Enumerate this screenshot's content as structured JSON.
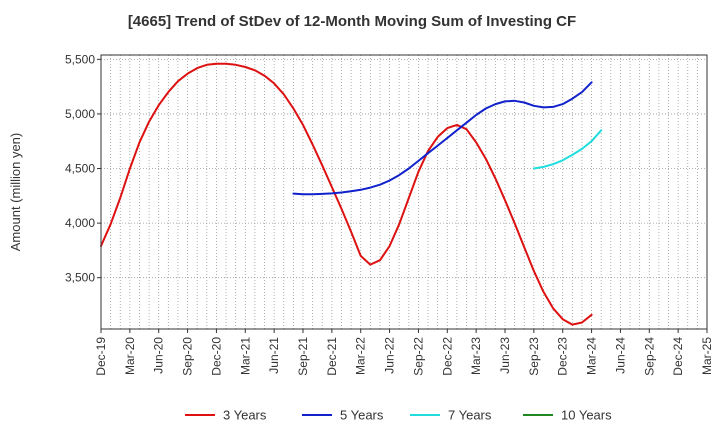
{
  "chart_data": {
    "type": "line",
    "title": "[4665]  Trend of StDev of 12-Month Moving Sum of Investing CF",
    "ylabel": "Amount (million yen)",
    "xlabel": "",
    "ylim": [
      3030,
      5540
    ],
    "y_ticks": [
      3500,
      4000,
      4500,
      5000,
      5500
    ],
    "y_tick_labels": [
      "3,500",
      "4,000",
      "4,500",
      "5,000",
      "5,500"
    ],
    "x_start": "2019-12",
    "x_end": "2025-03",
    "x_tick_labels": [
      "Dec-19",
      "Mar-20",
      "Jun-20",
      "Sep-20",
      "Dec-20",
      "Mar-21",
      "Jun-21",
      "Sep-21",
      "Dec-21",
      "Mar-22",
      "Jun-22",
      "Sep-22",
      "Dec-22",
      "Mar-23",
      "Jun-23",
      "Sep-23",
      "Dec-23",
      "Mar-24",
      "Jun-24",
      "Sep-24",
      "Dec-24",
      "Mar-25"
    ],
    "grid": true,
    "legend_position": "bottom",
    "series": [
      {
        "name": "3 Years",
        "color": "#dd1111",
        "points": [
          [
            "2019-12",
            3790
          ],
          [
            "2020-01",
            3990
          ],
          [
            "2020-02",
            4230
          ],
          [
            "2020-03",
            4500
          ],
          [
            "2020-04",
            4740
          ],
          [
            "2020-05",
            4930
          ],
          [
            "2020-06",
            5080
          ],
          [
            "2020-07",
            5200
          ],
          [
            "2020-08",
            5300
          ],
          [
            "2020-09",
            5370
          ],
          [
            "2020-10",
            5420
          ],
          [
            "2020-11",
            5450
          ],
          [
            "2020-12",
            5460
          ],
          [
            "2021-01",
            5460
          ],
          [
            "2021-02",
            5450
          ],
          [
            "2021-03",
            5430
          ],
          [
            "2021-04",
            5400
          ],
          [
            "2021-05",
            5350
          ],
          [
            "2021-06",
            5280
          ],
          [
            "2021-07",
            5180
          ],
          [
            "2021-08",
            5050
          ],
          [
            "2021-09",
            4900
          ],
          [
            "2021-10",
            4720
          ],
          [
            "2021-11",
            4530
          ],
          [
            "2021-12",
            4330
          ],
          [
            "2022-01",
            4130
          ],
          [
            "2022-02",
            3920
          ],
          [
            "2022-03",
            3700
          ],
          [
            "2022-04",
            3620
          ],
          [
            "2022-05",
            3660
          ],
          [
            "2022-06",
            3790
          ],
          [
            "2022-07",
            3990
          ],
          [
            "2022-08",
            4230
          ],
          [
            "2022-09",
            4470
          ],
          [
            "2022-10",
            4660
          ],
          [
            "2022-11",
            4790
          ],
          [
            "2022-12",
            4870
          ],
          [
            "2023-01",
            4900
          ],
          [
            "2023-02",
            4860
          ],
          [
            "2023-03",
            4740
          ],
          [
            "2023-04",
            4590
          ],
          [
            "2023-05",
            4410
          ],
          [
            "2023-06",
            4210
          ],
          [
            "2023-07",
            4000
          ],
          [
            "2023-08",
            3780
          ],
          [
            "2023-09",
            3560
          ],
          [
            "2023-10",
            3370
          ],
          [
            "2023-11",
            3220
          ],
          [
            "2023-12",
            3120
          ],
          [
            "2024-01",
            3070
          ],
          [
            "2024-02",
            3090
          ],
          [
            "2024-03",
            3160
          ]
        ]
      },
      {
        "name": "5 Years",
        "color": "#1122cc",
        "points": [
          [
            "2021-08",
            4270
          ],
          [
            "2021-09",
            4265
          ],
          [
            "2021-10",
            4265
          ],
          [
            "2021-11",
            4268
          ],
          [
            "2021-12",
            4272
          ],
          [
            "2022-01",
            4280
          ],
          [
            "2022-02",
            4292
          ],
          [
            "2022-03",
            4305
          ],
          [
            "2022-04",
            4325
          ],
          [
            "2022-05",
            4352
          ],
          [
            "2022-06",
            4390
          ],
          [
            "2022-07",
            4440
          ],
          [
            "2022-08",
            4500
          ],
          [
            "2022-09",
            4570
          ],
          [
            "2022-10",
            4640
          ],
          [
            "2022-11",
            4710
          ],
          [
            "2022-12",
            4780
          ],
          [
            "2023-01",
            4850
          ],
          [
            "2023-02",
            4920
          ],
          [
            "2023-03",
            4990
          ],
          [
            "2023-04",
            5050
          ],
          [
            "2023-05",
            5090
          ],
          [
            "2023-06",
            5115
          ],
          [
            "2023-07",
            5120
          ],
          [
            "2023-08",
            5105
          ],
          [
            "2023-09",
            5075
          ],
          [
            "2023-10",
            5060
          ],
          [
            "2023-11",
            5065
          ],
          [
            "2023-12",
            5090
          ],
          [
            "2024-01",
            5140
          ],
          [
            "2024-02",
            5200
          ],
          [
            "2024-03",
            5290
          ]
        ]
      },
      {
        "name": "7 Years",
        "color": "#22dddd",
        "points": [
          [
            "2023-09",
            4500
          ],
          [
            "2023-10",
            4515
          ],
          [
            "2023-11",
            4540
          ],
          [
            "2023-12",
            4575
          ],
          [
            "2024-01",
            4625
          ],
          [
            "2024-02",
            4680
          ],
          [
            "2024-03",
            4750
          ],
          [
            "2024-04",
            4850
          ]
        ]
      },
      {
        "name": "10 Years",
        "color": "#228822",
        "points": []
      }
    ]
  }
}
